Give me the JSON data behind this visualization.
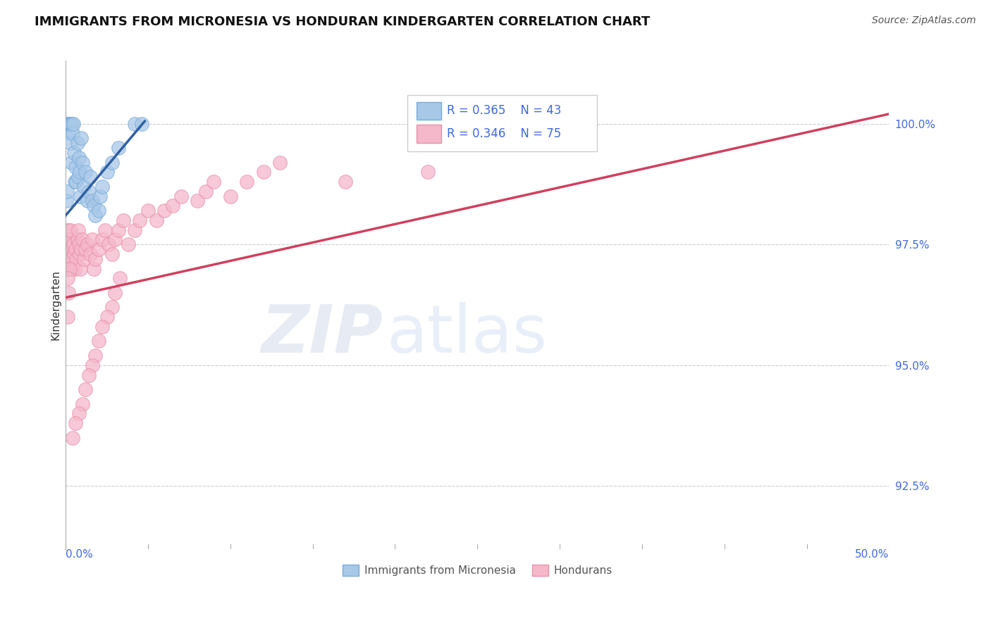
{
  "title": "IMMIGRANTS FROM MICRONESIA VS HONDURAN KINDERGARTEN CORRELATION CHART",
  "source": "Source: ZipAtlas.com",
  "ylabel": "Kindergarten",
  "r_blue": 0.365,
  "n_blue": 43,
  "r_pink": 0.346,
  "n_pink": 75,
  "y_ticks": [
    92.5,
    95.0,
    97.5,
    100.0
  ],
  "y_tick_labels": [
    "92.5%",
    "95.0%",
    "97.5%",
    "100.0%"
  ],
  "x_min": 0.0,
  "x_max": 50.0,
  "y_min": 91.2,
  "y_max": 101.3,
  "blue_color": "#a8c8e8",
  "blue_edge_color": "#7aabda",
  "pink_color": "#f5b8cb",
  "pink_edge_color": "#e890a8",
  "blue_line_color": "#3060a0",
  "pink_line_color": "#d04060",
  "blue_line_x0": 0.0,
  "blue_line_x1": 4.8,
  "blue_line_y0": 98.1,
  "blue_line_y1": 100.05,
  "pink_line_x0": 0.0,
  "pink_line_x1": 50.0,
  "pink_line_y0": 96.4,
  "pink_line_y1": 100.2,
  "blue_scatter_x": [
    0.05,
    0.08,
    0.1,
    0.12,
    0.15,
    0.18,
    0.2,
    0.22,
    0.25,
    0.28,
    0.3,
    0.32,
    0.35,
    0.38,
    0.4,
    0.45,
    0.5,
    0.55,
    0.6,
    0.65,
    0.7,
    0.75,
    0.8,
    0.85,
    0.9,
    0.95,
    1.0,
    1.1,
    1.2,
    1.3,
    1.4,
    1.5,
    1.6,
    1.7,
    1.8,
    2.0,
    2.1,
    2.2,
    2.5,
    2.8,
    3.2,
    4.2,
    4.6
  ],
  "blue_scatter_y": [
    98.4,
    98.6,
    99.8,
    100.0,
    100.0,
    100.0,
    100.0,
    100.0,
    100.0,
    100.0,
    99.6,
    99.2,
    100.0,
    100.0,
    99.8,
    100.0,
    99.4,
    98.8,
    99.1,
    98.8,
    99.6,
    98.9,
    99.3,
    99.0,
    98.5,
    99.7,
    99.2,
    98.7,
    99.0,
    98.4,
    98.6,
    98.9,
    98.4,
    98.3,
    98.1,
    98.2,
    98.5,
    98.7,
    99.0,
    99.2,
    99.5,
    100.0,
    100.0
  ],
  "pink_scatter_x": [
    0.05,
    0.08,
    0.1,
    0.12,
    0.15,
    0.18,
    0.2,
    0.22,
    0.25,
    0.28,
    0.3,
    0.35,
    0.4,
    0.45,
    0.5,
    0.55,
    0.6,
    0.65,
    0.7,
    0.75,
    0.8,
    0.85,
    0.9,
    0.95,
    1.0,
    1.1,
    1.2,
    1.3,
    1.5,
    1.6,
    1.7,
    1.8,
    2.0,
    2.2,
    2.4,
    2.6,
    2.8,
    3.0,
    3.2,
    3.5,
    3.8,
    4.2,
    4.5,
    5.0,
    5.5,
    6.0,
    6.5,
    7.0,
    8.0,
    8.5,
    9.0,
    10.0,
    11.0,
    12.0,
    13.0,
    3.3,
    3.0,
    2.8,
    2.5,
    2.2,
    2.0,
    1.8,
    1.6,
    1.4,
    1.2,
    1.0,
    0.8,
    0.6,
    0.4,
    0.25,
    0.15,
    0.12,
    0.1,
    17.0,
    22.0
  ],
  "pink_scatter_y": [
    97.8,
    97.5,
    97.2,
    97.0,
    97.8,
    97.3,
    97.5,
    97.6,
    97.0,
    97.4,
    97.8,
    97.2,
    97.0,
    97.5,
    97.3,
    97.0,
    97.4,
    97.2,
    97.6,
    97.8,
    97.5,
    97.3,
    97.0,
    97.4,
    97.6,
    97.2,
    97.4,
    97.5,
    97.3,
    97.6,
    97.0,
    97.2,
    97.4,
    97.6,
    97.8,
    97.5,
    97.3,
    97.6,
    97.8,
    98.0,
    97.5,
    97.8,
    98.0,
    98.2,
    98.0,
    98.2,
    98.3,
    98.5,
    98.4,
    98.6,
    98.8,
    98.5,
    98.8,
    99.0,
    99.2,
    96.8,
    96.5,
    96.2,
    96.0,
    95.8,
    95.5,
    95.2,
    95.0,
    94.8,
    94.5,
    94.2,
    94.0,
    93.8,
    93.5,
    97.0,
    96.5,
    96.0,
    96.8,
    98.8,
    99.0
  ],
  "background_color": "#ffffff",
  "watermark_zip": "ZIP",
  "watermark_atlas": "atlas",
  "label_color": "#4169e1",
  "title_fontsize": 13,
  "source_fontsize": 10,
  "tick_label_fontsize": 11,
  "axis_label_fontsize": 11
}
